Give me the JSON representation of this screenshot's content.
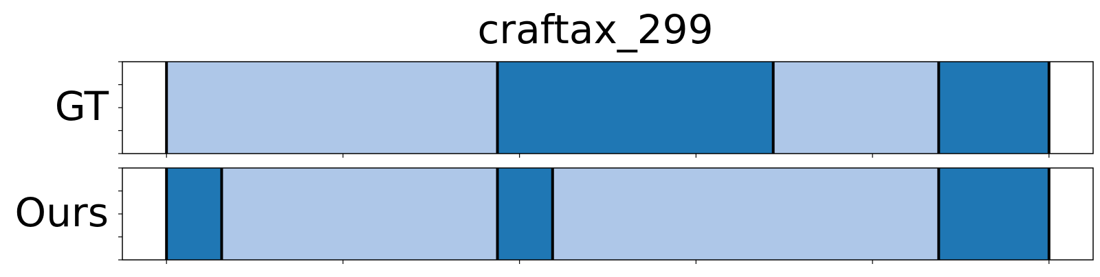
{
  "chart_data": {
    "type": "segmentation",
    "title": "craftax_299",
    "xlim": [
      -20,
      420
    ],
    "x_ticks": [
      0,
      80,
      160,
      240,
      320,
      400
    ],
    "rows": [
      {
        "label": "GT",
        "segments": [
          {
            "start": 0,
            "end": 150,
            "class": "light"
          },
          {
            "start": 150,
            "end": 275,
            "class": "dark"
          },
          {
            "start": 275,
            "end": 350,
            "class": "light"
          },
          {
            "start": 350,
            "end": 400,
            "class": "dark"
          }
        ]
      },
      {
        "label": "Ours",
        "segments": [
          {
            "start": 0,
            "end": 25,
            "class": "dark"
          },
          {
            "start": 25,
            "end": 150,
            "class": "light"
          },
          {
            "start": 150,
            "end": 175,
            "class": "dark"
          },
          {
            "start": 175,
            "end": 350,
            "class": "light"
          },
          {
            "start": 350,
            "end": 400,
            "class": "dark"
          }
        ]
      }
    ],
    "colors": {
      "light": "#aec7e8",
      "dark": "#1f77b4",
      "boundary": "#000000",
      "frame": "#000000"
    }
  }
}
